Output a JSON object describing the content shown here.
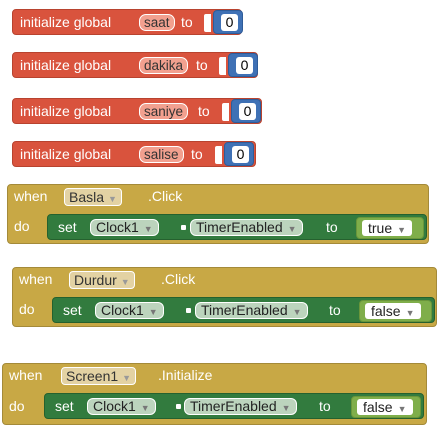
{
  "globals": [
    {
      "label": "initialize global",
      "name": "saat",
      "to": "to",
      "value": "0"
    },
    {
      "label": "initialize global",
      "name": "dakika",
      "to": "to",
      "value": "0"
    },
    {
      "label": "initialize global",
      "name": "saniye",
      "to": "to",
      "value": "0"
    },
    {
      "label": "initialize global",
      "name": "salise",
      "to": "to",
      "value": "0"
    }
  ],
  "events": [
    {
      "when": "when",
      "component": "Basla",
      "event": ".Click",
      "do": "do",
      "set": "set",
      "target": "Clock1",
      "property": "TimerEnabled",
      "to": "to",
      "value": "true"
    },
    {
      "when": "when",
      "component": "Durdur",
      "event": ".Click",
      "do": "do",
      "set": "set",
      "target": "Clock1",
      "property": "TimerEnabled",
      "to": "to",
      "value": "false"
    },
    {
      "when": "when",
      "component": "Screen1",
      "event": ".Initialize",
      "do": "do",
      "set": "set",
      "target": "Clock1",
      "property": "TimerEnabled",
      "to": "to",
      "value": "false"
    }
  ],
  "colors": {
    "variable_block": "#d9533d",
    "number_block": "#3f71b5",
    "event_block": "#c8a845",
    "setter_block": "#327b3e",
    "logic_block": "#7fae4a"
  },
  "icons": {
    "dropdown": "dropdown-arrow-icon"
  }
}
